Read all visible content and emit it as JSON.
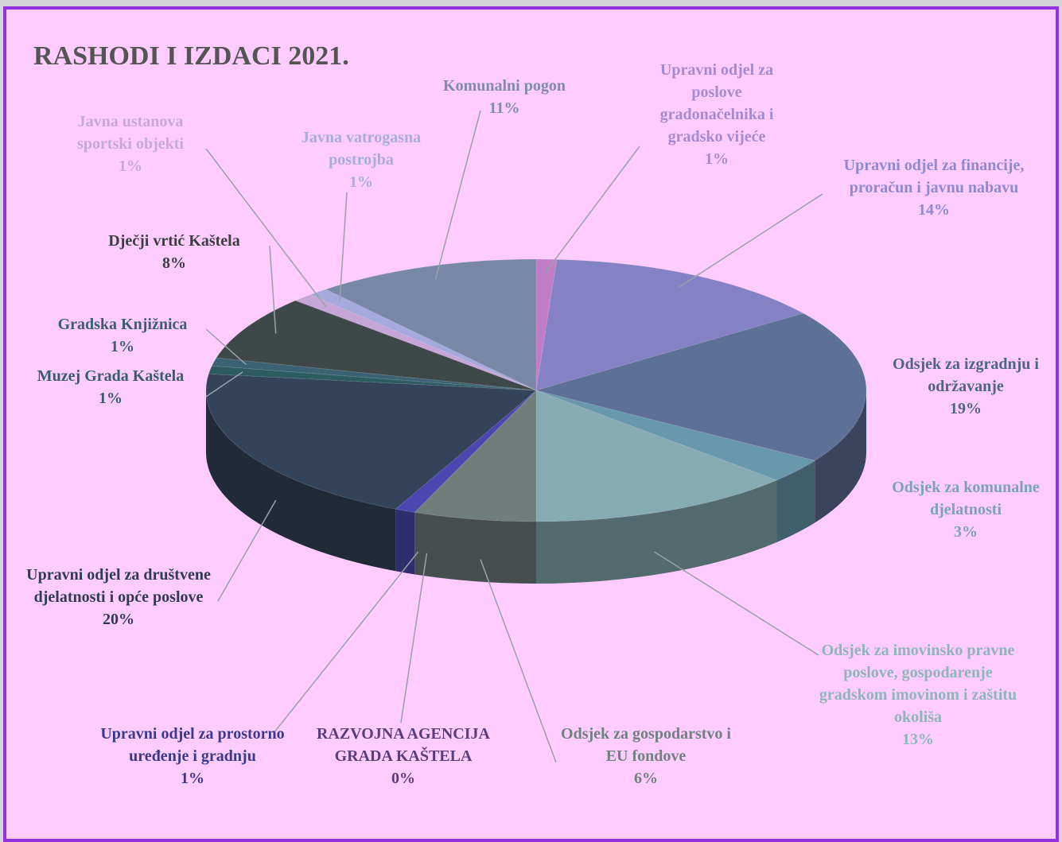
{
  "chart_data": {
    "type": "pie3d",
    "title": "RASHODI I IZDACI 2021.",
    "categories": [
      "Upravni odjel za poslove gradonačelnika i gradsko vijeće",
      "Upravni odjel za financije, proračun i javnu nabavu",
      "Odsjek za izgradnju i održavanje",
      "Odsjek za komunalne djelatnosti",
      "Odsjek za imovinsko pravne poslove, gospodarenje gradskom imovinom i zaštitu okoliša",
      "Odsjek za gospodarstvo i EU fondove",
      "RAZVOJNA AGENCIJA GRADA KAŠTELA",
      "Upravni odjel za prostorno uređenje i gradnju",
      "Upravni odjel za društvene djelatnosti i opće poslove",
      "Muzej Grada Kaštela",
      "Gradska Knjižnica",
      "Dječji vrtić Kaštela",
      "Javna ustanova sportski objekti",
      "Javna vatrogasna postrojba",
      "Komunalni pogon"
    ],
    "values": [
      1,
      14,
      19,
      3,
      13,
      6,
      0,
      1,
      20,
      1,
      1,
      8,
      1,
      1,
      11
    ],
    "value_labels": [
      "1%",
      "14%",
      "19%",
      "3%",
      "13%",
      "6%",
      "0%",
      "1%",
      "20%",
      "1%",
      "1%",
      "8%",
      "1%",
      "1%",
      "11%"
    ],
    "colors": [
      "#c07ec8",
      "#8482c4",
      "#5d7096",
      "#6898ac",
      "#86abb2",
      "#6f7e7b",
      "#9a44b0",
      "#4a48b0",
      "#33435a",
      "#2c5c62",
      "#3b6272",
      "#3f4848",
      "#c6a6d6",
      "#a4aadb",
      "#7889a8"
    ],
    "label_colors": [
      "#a58ad0",
      "#8e8ad0",
      "#4f6585",
      "#7aa3b5",
      "#8fb5ba",
      "#6f8280",
      "#5a3d7c",
      "#3a3a8c",
      "#2e3c50",
      "#365f6a",
      "#3c5f70",
      "#3a3e40",
      "#c6aad6",
      "#a7aedd",
      "#7d8daa"
    ]
  }
}
